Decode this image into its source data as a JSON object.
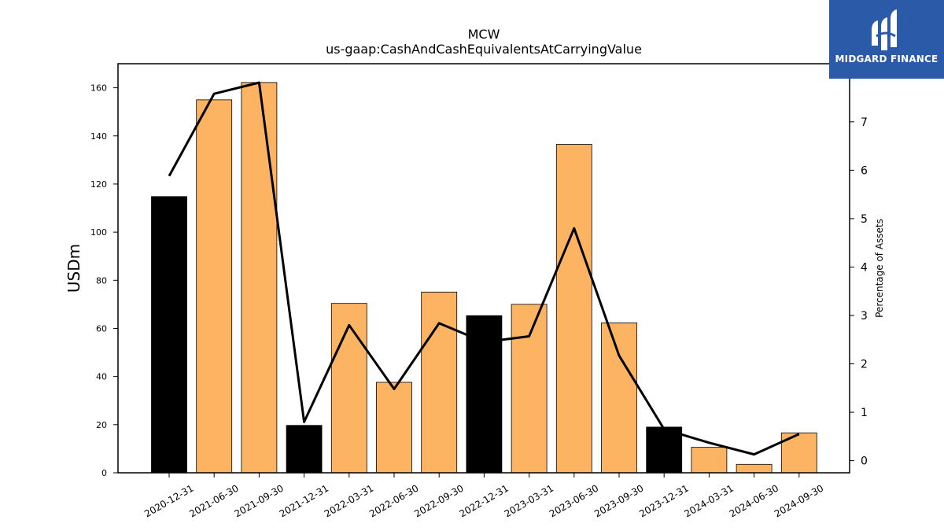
{
  "chart_data": {
    "type": "bar",
    "title": "MCW",
    "subtitle": "us-gaap:CashAndCashEquivalentsAtCarryingValue",
    "ylabel": "USDm",
    "y2label": "Percentage of Assets",
    "ylim": [
      0,
      170
    ],
    "y2lim": [
      -0.25,
      8.2
    ],
    "yticks": [
      0,
      20,
      40,
      60,
      80,
      100,
      120,
      140,
      160
    ],
    "y2ticks": [
      0,
      1,
      2,
      3,
      4,
      5,
      6,
      7
    ],
    "categories": [
      "2020-12-31",
      "2021-06-30",
      "2021-09-30",
      "2021-12-31",
      "2022-03-31",
      "2022-06-30",
      "2022-09-30",
      "2022-12-31",
      "2023-03-31",
      "2023-06-30",
      "2023-09-30",
      "2023-12-31",
      "2024-03-31",
      "2024-06-30",
      "2024-09-30"
    ],
    "series": [
      {
        "type": "bar",
        "axis": "left",
        "values": [
          114.8,
          155.0,
          162.2,
          19.7,
          70.4,
          37.6,
          75.1,
          65.3,
          70.0,
          136.5,
          62.3,
          19.0,
          10.6,
          3.5,
          16.6
        ],
        "bar_colors": [
          "#000000",
          "#fdb462",
          "#fdb462",
          "#000000",
          "#fdb462",
          "#fdb462",
          "#fdb462",
          "#000000",
          "#fdb462",
          "#fdb462",
          "#fdb462",
          "#000000",
          "#fdb462",
          "#fdb462",
          "#fdb462"
        ]
      },
      {
        "type": "line",
        "axis": "right",
        "color": "#000000",
        "values": [
          5.88,
          7.58,
          7.81,
          0.8,
          2.8,
          1.48,
          2.84,
          2.45,
          2.57,
          4.8,
          2.17,
          0.65,
          0.37,
          0.13,
          0.55
        ]
      }
    ]
  },
  "logo": {
    "text": "MIDGARD FINANCE",
    "background": "#2a5aa8"
  }
}
